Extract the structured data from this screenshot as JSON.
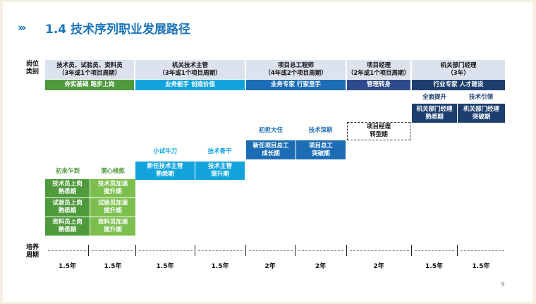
{
  "header": {
    "icon": "triple-chevron-icon",
    "chevrons": "›››",
    "title": "1.4  技术序列职业发展路径"
  },
  "row_labels": {
    "position": [
      "岗位",
      "类别"
    ],
    "training": [
      "培养",
      "周期"
    ]
  },
  "columns": [
    {
      "line1": "技术员、试验员、资料员",
      "line2": "（3年或1个项目周期）",
      "band": "夯实基础 跑步上岗",
      "color": "#4e9a3c"
    },
    {
      "line1": "机关技术主管",
      "line2": "（3年或1个项目周期）",
      "band": "业务能手 创造价值",
      "color": "#12a3dd"
    },
    {
      "line1": "项目总工程师",
      "line2": "（4年或2个项目周期）",
      "band": "业务专家 行家里手",
      "color": "#1c6db5"
    },
    {
      "line1": "项目经理",
      "line2": "（2年或1个项目周期）",
      "band": "管理转身",
      "color": "#2e4a8c"
    },
    {
      "line1": "机关部门经理",
      "line2": "（3年）",
      "band": "行业专家 人才建设",
      "color": "#1d3f6f"
    }
  ],
  "stages": [
    {
      "label": "初来乍到",
      "box": []
    },
    {
      "label": "潜心修炼",
      "box": []
    },
    {
      "label": "小试牛刀",
      "box": [
        "新任技术主管",
        "熟悉期"
      ]
    },
    {
      "label": "技术骨干",
      "box": [
        "技术主管",
        "提升期"
      ]
    },
    {
      "label": "初担大任",
      "box": [
        "新任项目总工",
        "成长期"
      ]
    },
    {
      "label": "技术深耕",
      "box": [
        "项目总工",
        "突破期"
      ]
    },
    {
      "label": "",
      "box": [
        "项目经理",
        "转型期"
      ]
    },
    {
      "label": "全面提升",
      "box": [
        "机关部门经理",
        "熟悉期"
      ]
    },
    {
      "label": "技术引领",
      "box": [
        "机关部门经理",
        "突破期"
      ]
    }
  ],
  "green_boxes": [
    [
      "技术员上岗",
      "熟悉期"
    ],
    [
      "技术员加速",
      "提升期"
    ],
    [
      "试验员上岗",
      "熟悉期"
    ],
    [
      "试验员加速",
      "提升期"
    ],
    [
      "资料员上岗",
      "熟悉期"
    ],
    [
      "资料员加速",
      "提升期"
    ]
  ],
  "periods": [
    "1.5年",
    "1.5年",
    "1.5年",
    "1.5年",
    "2年",
    "2年",
    "2年",
    "1.5年",
    "1.5年"
  ],
  "page_number": "9",
  "colors": {
    "title": "#1b75bb",
    "header_bg": "#dde3ee",
    "green_dark": "#4e9a3c",
    "green_light": "#7cbf4e",
    "sky": "#12a3dd",
    "blue": "#1c6db5",
    "navy": "#1d3f6f"
  }
}
